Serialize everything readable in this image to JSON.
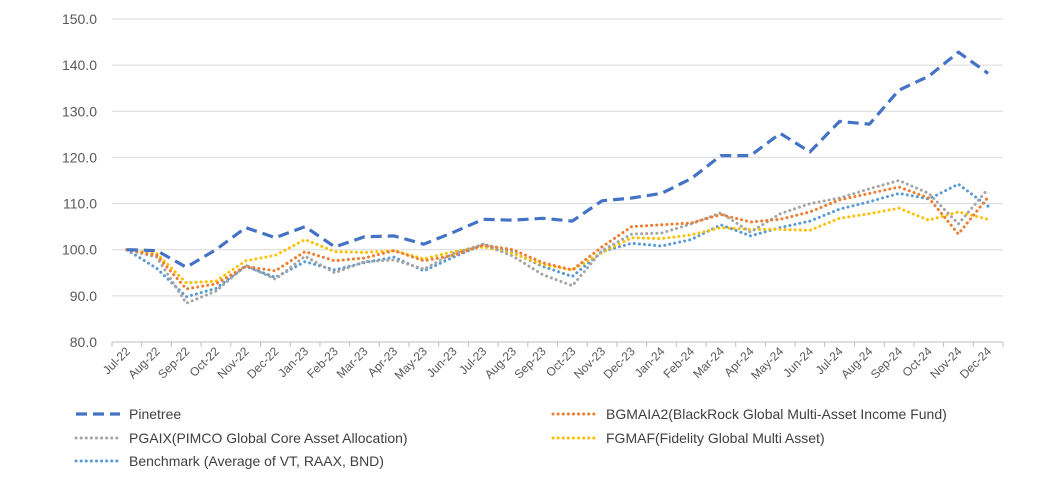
{
  "chart_data": {
    "type": "line",
    "title": "",
    "xlabel": "",
    "ylabel": "",
    "ylim": [
      80,
      150
    ],
    "yticks": [
      "80.0",
      "90.0",
      "100.0",
      "110.0",
      "120.0",
      "130.0",
      "140.0",
      "150.0"
    ],
    "grid": "horizontal",
    "legend_position": "bottom",
    "categories": [
      "Jul-22",
      "Aug-22",
      "Sep-22",
      "Oct-22",
      "Nov-22",
      "Dec-22",
      "Jan-23",
      "Feb-23",
      "Mar-23",
      "Apr-23",
      "May-23",
      "Jun-23",
      "Jul-23",
      "Aug-23",
      "Sep-23",
      "Oct-23",
      "Nov-23",
      "Dec-23",
      "Jan-24",
      "Feb-24",
      "Mar-24",
      "Apr-24",
      "May-24",
      "Jun-24",
      "Jul-24",
      "Aug-24",
      "Sep-24",
      "Oct-24",
      "Nov-24",
      "Dec-24"
    ],
    "series": [
      {
        "name": "Pinetree",
        "color": "#4472C4",
        "style": "dash",
        "values": [
          100.0,
          99.8,
          96.2,
          100.0,
          104.8,
          102.6,
          105.0,
          100.6,
          102.8,
          103.0,
          101.2,
          103.8,
          106.6,
          106.4,
          106.8,
          106.2,
          110.6,
          111.2,
          112.2,
          115.4,
          120.4,
          120.4,
          125.2,
          121.2,
          127.8,
          127.2,
          134.6,
          137.6,
          142.8,
          138.2
        ]
      },
      {
        "name": "BGMAIA2(BlackRock Global Multi-Asset Income Fund)",
        "color": "#ED7D31",
        "style": "dot",
        "values": [
          100.0,
          98.8,
          91.5,
          92.6,
          96.4,
          95.4,
          99.6,
          97.6,
          98.2,
          99.8,
          97.6,
          98.8,
          101.0,
          100.0,
          97.2,
          95.6,
          100.6,
          105.0,
          105.4,
          105.8,
          107.6,
          106.0,
          106.6,
          108.2,
          110.8,
          112.2,
          113.6,
          111.2,
          103.4,
          111.4
        ]
      },
      {
        "name": "PGAIX(PIMCO Global Core Asset Allocation)",
        "color": "#A5A5A5",
        "style": "dot",
        "values": [
          100.0,
          98.4,
          88.4,
          91.0,
          96.6,
          93.6,
          98.6,
          95.0,
          97.4,
          97.8,
          95.8,
          99.2,
          101.2,
          98.6,
          94.6,
          92.2,
          99.8,
          103.4,
          103.6,
          105.6,
          108.0,
          103.8,
          107.8,
          110.0,
          111.2,
          113.2,
          115.0,
          112.2,
          105.6,
          113.2
        ]
      },
      {
        "name": "FGMAF(Fidelity Global Multi Asset)",
        "color": "#FFC000",
        "style": "dot",
        "values": [
          100.0,
          99.2,
          92.8,
          93.2,
          97.6,
          98.8,
          102.2,
          99.6,
          99.4,
          99.8,
          98.0,
          99.6,
          100.6,
          99.2,
          96.8,
          95.6,
          99.4,
          102.6,
          102.4,
          103.2,
          104.8,
          104.4,
          104.4,
          104.2,
          106.8,
          107.8,
          109.0,
          106.4,
          108.2,
          106.6
        ]
      },
      {
        "name": "Benchmark (Average of VT, RAAX, BND)",
        "color": "#5B9BD5",
        "style": "dot",
        "values": [
          100.0,
          96.0,
          89.8,
          91.6,
          96.4,
          94.0,
          97.4,
          95.6,
          97.2,
          98.4,
          95.4,
          98.4,
          101.2,
          99.4,
          96.4,
          94.2,
          99.6,
          101.4,
          100.8,
          102.2,
          105.4,
          103.0,
          104.8,
          106.2,
          108.8,
          110.4,
          112.2,
          111.0,
          114.2,
          109.4
        ]
      }
    ]
  }
}
